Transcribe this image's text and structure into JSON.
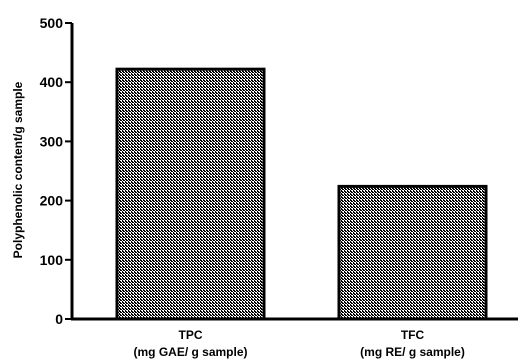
{
  "chart_data": {
    "type": "bar",
    "categories": [
      {
        "line1": "TPC",
        "line2": "(mg GAE/ g sample)"
      },
      {
        "line1": "TFC",
        "line2": "(mg RE/ g sample)"
      }
    ],
    "values": [
      422,
      224
    ],
    "title": "",
    "xlabel": "",
    "ylabel": "Polyphenolic content/g sample",
    "ylim": [
      0,
      500
    ],
    "yticks": [
      0,
      100,
      200,
      300,
      400,
      500
    ],
    "grid": false,
    "legend": "none",
    "bar_fill": "dense crosshatch pattern",
    "colors": {
      "bar_pattern": "#000000",
      "bar_background": "#ffffff",
      "axis": "#000000"
    }
  }
}
